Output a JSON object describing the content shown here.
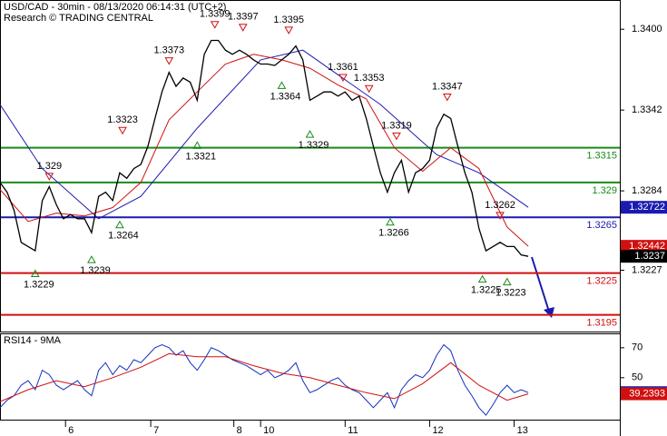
{
  "chart_data": [
    {
      "type": "line",
      "title": "USD/CAD - 30min - 08/13/2020 06:14:31 (UTC+2)",
      "subtitle": "Research © TRADING CENTRAL",
      "xlim": [
        0,
        88
      ],
      "ylim": [
        1.3183,
        1.3421
      ],
      "yticks": [
        {
          "value": 1.34,
          "label": "1.3400"
        },
        1.3342,
        1.3284,
        1.3227
      ],
      "levels": [
        {
          "value": 1.3315,
          "color": "#1a8a1a"
        },
        {
          "value": 1.329,
          "color": "#1a8a1a"
        },
        {
          "value": 1.3265,
          "color": "#1a1ab0"
        },
        {
          "value": 1.3225,
          "color": "#d01010"
        },
        {
          "value": 1.3195,
          "color": "#d01010"
        }
      ],
      "series": [
        {
          "color": "#1a1ab0",
          "x": [
            0,
            6,
            14,
            20,
            28,
            37,
            43,
            54,
            62,
            68,
            75
          ],
          "values": [
            1.3346,
            1.33,
            1.3264,
            1.328,
            1.3329,
            1.3378,
            1.3385,
            1.3346,
            1.331,
            1.3297,
            1.32722
          ]
        },
        {
          "color": "#d01010",
          "x": [
            0,
            4,
            8,
            12,
            16,
            20,
            24,
            28,
            32,
            36,
            40,
            44,
            48,
            52,
            56,
            60,
            64,
            68,
            72,
            75
          ],
          "values": [
            1.3285,
            1.3262,
            1.3268,
            1.3266,
            1.3272,
            1.329,
            1.3335,
            1.3355,
            1.3375,
            1.3382,
            1.3378,
            1.3372,
            1.336,
            1.335,
            1.3315,
            1.3298,
            1.3315,
            1.33,
            1.3258,
            1.32442
          ]
        },
        {
          "color": "#000000",
          "x": [
            0,
            1,
            2,
            3,
            4,
            5,
            6,
            7,
            8,
            9,
            10,
            11,
            12,
            13,
            14,
            15,
            16,
            17,
            18,
            19,
            20,
            21,
            22,
            23,
            24,
            25,
            26,
            27,
            28,
            29,
            30,
            31,
            32,
            33,
            34,
            35,
            36,
            37,
            38,
            39,
            40,
            41,
            42,
            43,
            44,
            45,
            46,
            47,
            48,
            49,
            50,
            51,
            52,
            53,
            54,
            55,
            56,
            57,
            58,
            59,
            60,
            61,
            62,
            63,
            64,
            65,
            66,
            67,
            68,
            69,
            70,
            71,
            72,
            73,
            74,
            75
          ],
          "values": [
            1.329,
            1.3283,
            1.327,
            1.3247,
            1.3244,
            1.3241,
            1.3277,
            1.3287,
            1.3274,
            1.3264,
            1.3267,
            1.3264,
            1.3264,
            1.3254,
            1.328,
            1.3283,
            1.3277,
            1.3297,
            1.3293,
            1.33,
            1.3303,
            1.3316,
            1.3336,
            1.3355,
            1.3369,
            1.3359,
            1.3365,
            1.3362,
            1.3349,
            1.3382,
            1.3392,
            1.3392,
            1.3385,
            1.3382,
            1.3385,
            1.3382,
            1.3378,
            1.3375,
            1.3375,
            1.3374,
            1.3378,
            1.3382,
            1.3388,
            1.3378,
            1.3349,
            1.3352,
            1.3355,
            1.3355,
            1.3352,
            1.3355,
            1.3349,
            1.3352,
            1.3336,
            1.3316,
            1.3297,
            1.3283,
            1.3297,
            1.3306,
            1.3283,
            1.3297,
            1.33,
            1.3306,
            1.3329,
            1.3339,
            1.3336,
            1.3316,
            1.3297,
            1.3283,
            1.3257,
            1.3241,
            1.3244,
            1.3247,
            1.3244,
            1.3244,
            1.3238,
            1.3237
          ]
        }
      ],
      "annotations": [
        {
          "x": 5,
          "value": 1.3229,
          "marker": "up"
        },
        {
          "x": 7,
          "value": 1.329,
          "marker": "down"
        },
        {
          "x": 13,
          "value": 1.3239,
          "marker": "up"
        },
        {
          "x": 17,
          "value": 1.3264,
          "marker": "up"
        },
        {
          "x": 17.4,
          "value": 1.3323,
          "marker": "down"
        },
        {
          "x": 24,
          "value": 1.3373,
          "marker": "down"
        },
        {
          "x": 28,
          "value": 1.3321,
          "marker": "up"
        },
        {
          "x": 30.5,
          "value": 1.3399,
          "marker": "down"
        },
        {
          "x": 34.5,
          "value": 1.3397,
          "marker": "down"
        },
        {
          "x": 41,
          "value": 1.3395,
          "marker": "down"
        },
        {
          "x": 40,
          "value": 1.3364,
          "marker": "up"
        },
        {
          "x": 44,
          "value": 1.3329,
          "marker": "up"
        },
        {
          "x": 48.7,
          "value": 1.3361,
          "marker": "down"
        },
        {
          "x": 52.4,
          "value": 1.3353,
          "marker": "down"
        },
        {
          "x": 56.3,
          "value": 1.3319,
          "marker": "down"
        },
        {
          "x": 55.4,
          "value": 1.3266,
          "marker": "up"
        },
        {
          "x": 63.5,
          "value": 1.3347,
          "marker": "down"
        },
        {
          "x": 71,
          "value": 1.3262,
          "marker": "down"
        },
        {
          "x": 68.5,
          "value": 1.3225,
          "marker": "up"
        },
        {
          "x": 72,
          "value": 1.3223,
          "marker": "up"
        }
      ]
    },
    {
      "type": "line",
      "title": "RSI14 - 9MA",
      "xlim": [
        0,
        88
      ],
      "ylim": [
        22,
        79
      ],
      "yticks": [
        70,
        50
      ],
      "xticks": [
        {
          "value": 9.3,
          "label": "6"
        },
        {
          "value": 21.4,
          "label": "7"
        },
        {
          "value": 33.2,
          "label": "8"
        },
        {
          "value": 37,
          "label": "10"
        },
        {
          "value": 49,
          "label": "11"
        },
        {
          "value": 61,
          "label": "12"
        },
        {
          "value": 73,
          "label": "13"
        }
      ],
      "series": [
        {
          "color": "#1030c0",
          "x": [
            0,
            1,
            2,
            3,
            4,
            5,
            6,
            7,
            8,
            9,
            10,
            11,
            12,
            13,
            14,
            15,
            16,
            17,
            18,
            19,
            20,
            21,
            22,
            23,
            24,
            25,
            26,
            27,
            28,
            29,
            30,
            31,
            32,
            33,
            34,
            35,
            36,
            37,
            38,
            39,
            40,
            41,
            42,
            43,
            44,
            45,
            46,
            47,
            48,
            49,
            50,
            51,
            52,
            53,
            54,
            55,
            56,
            57,
            58,
            59,
            60,
            61,
            62,
            63,
            64,
            65,
            66,
            67,
            68,
            69,
            70,
            71,
            72,
            73,
            74,
            75
          ],
          "values": [
            30,
            35,
            38,
            45,
            48,
            42,
            55,
            52,
            45,
            42,
            45,
            48,
            42,
            38,
            55,
            60,
            52,
            58,
            55,
            62,
            60,
            65,
            70,
            72,
            70,
            65,
            68,
            60,
            55,
            62,
            70,
            68,
            65,
            62,
            60,
            58,
            55,
            52,
            55,
            50,
            52,
            55,
            60,
            48,
            40,
            42,
            45,
            48,
            50,
            45,
            42,
            40,
            35,
            30,
            35,
            40,
            30,
            42,
            48,
            52,
            50,
            55,
            65,
            72,
            68,
            55,
            45,
            38,
            30,
            25,
            32,
            40,
            45,
            40,
            42,
            40.0809
          ]
        },
        {
          "color": "#d01010",
          "x": [
            0,
            4,
            8,
            12,
            16,
            20,
            24,
            28,
            32,
            36,
            40,
            44,
            48,
            52,
            56,
            60,
            64,
            68,
            72,
            75
          ],
          "values": [
            34,
            42,
            48,
            44,
            50,
            57,
            66,
            64,
            64,
            58,
            53,
            50,
            45,
            40,
            36,
            46,
            60,
            45,
            35,
            39.2393
          ]
        }
      ]
    }
  ]
}
